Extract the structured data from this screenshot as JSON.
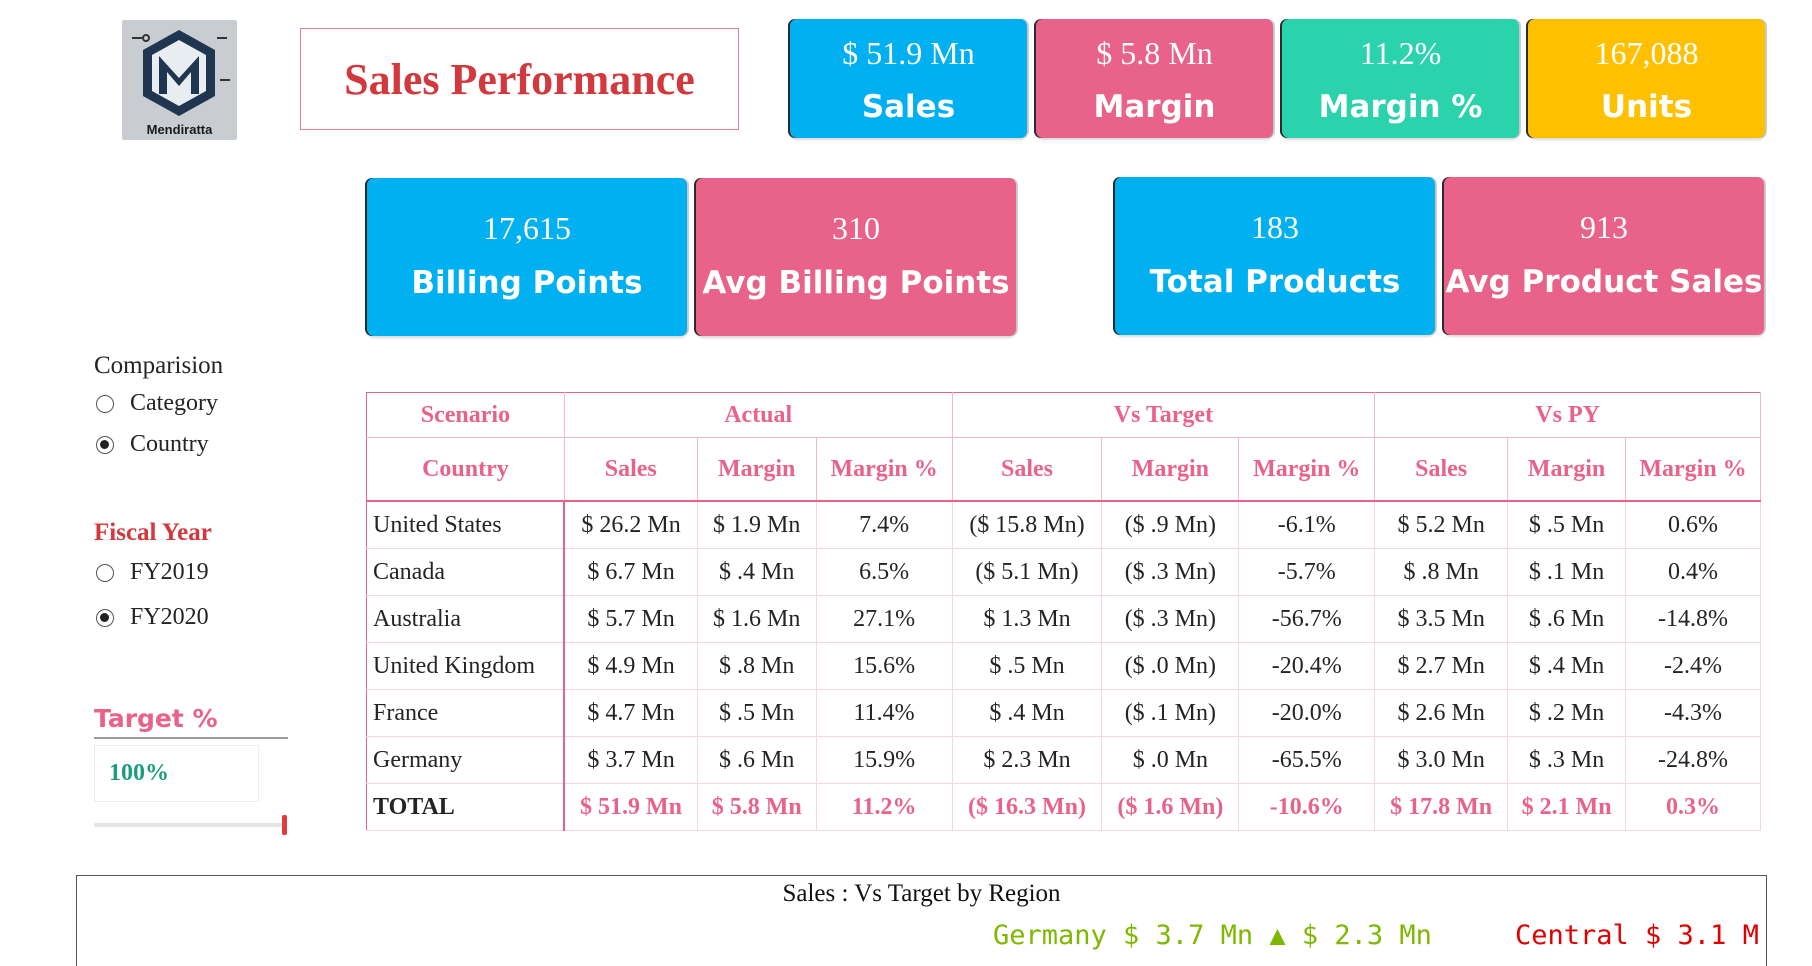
{
  "logo": {
    "text": "Mendiratta"
  },
  "title": "Sales Performance",
  "kpis_top": [
    {
      "value": "$ 51.9 Mn",
      "label": "Sales",
      "color": "#00b0f0"
    },
    {
      "value": "$ 5.8 Mn",
      "label": "Margin",
      "color": "#e9628a"
    },
    {
      "value": "11.2%",
      "label": "Margin %",
      "color": "#2ad3ac"
    },
    {
      "value": "167,088",
      "label": "Units",
      "color": "#ffc000"
    }
  ],
  "kpis_mid": [
    {
      "value": "17,615",
      "label": "Billing Points"
    },
    {
      "value": "310",
      "label": "Avg Billing Points"
    },
    {
      "value": "183",
      "label": "Total Products"
    },
    {
      "value": "913",
      "label": "Avg Product Sales"
    }
  ],
  "comparision": {
    "heading": "Comparision",
    "options": [
      {
        "label": "Category",
        "selected": false
      },
      {
        "label": "Country",
        "selected": true
      }
    ]
  },
  "fiscal_year": {
    "heading": "Fiscal Year",
    "options": [
      {
        "label": "FY2019",
        "selected": false
      },
      {
        "label": "FY2020",
        "selected": true
      }
    ]
  },
  "target": {
    "heading": "Target %",
    "value": "100%"
  },
  "table": {
    "group_headers": [
      "Scenario",
      "Actual",
      "Vs Target",
      "Vs PY"
    ],
    "col_headers": [
      "Country",
      "Sales",
      "Margin",
      "Margin %",
      "Sales",
      "Margin",
      "Margin %",
      "Sales",
      "Margin",
      "Margin %"
    ],
    "rows": [
      [
        "United States",
        "$ 26.2 Mn",
        "$ 1.9 Mn",
        "7.4%",
        "($ 15.8 Mn)",
        "($ .9 Mn)",
        "-6.1%",
        "$ 5.2 Mn",
        "$ .5 Mn",
        "0.6%"
      ],
      [
        "Canada",
        "$ 6.7 Mn",
        "$ .4 Mn",
        "6.5%",
        "($ 5.1 Mn)",
        "($ .3 Mn)",
        "-5.7%",
        "$ .8 Mn",
        "$ .1 Mn",
        "0.4%"
      ],
      [
        "Australia",
        "$ 5.7 Mn",
        "$ 1.6 Mn",
        "27.1%",
        "$ 1.3 Mn",
        "($ .3 Mn)",
        "-56.7%",
        "$ 3.5 Mn",
        "$ .6 Mn",
        "-14.8%"
      ],
      [
        "United Kingdom",
        "$ 4.9 Mn",
        "$ .8 Mn",
        "15.6%",
        "$ .5 Mn",
        "($ .0 Mn)",
        "-20.4%",
        "$ 2.7 Mn",
        "$ .4 Mn",
        "-2.4%"
      ],
      [
        "France",
        "$ 4.7 Mn",
        "$ .5 Mn",
        "11.4%",
        "$ .4 Mn",
        "($ .1 Mn)",
        "-20.0%",
        "$ 2.6 Mn",
        "$ .2 Mn",
        "-4.3%"
      ],
      [
        "Germany",
        "$ 3.7 Mn",
        "$ .6 Mn",
        "15.9%",
        "$ 2.3 Mn",
        "$ .0 Mn",
        "-65.5%",
        "$ 3.0 Mn",
        "$ .3 Mn",
        "-24.8%"
      ]
    ],
    "total": [
      "TOTAL",
      "$ 51.9 Mn",
      "$ 5.8 Mn",
      "11.2%",
      "($ 16.3 Mn)",
      "($ 1.6 Mn)",
      "-10.6%",
      "$ 17.8 Mn",
      "$ 2.1 Mn",
      "0.3%"
    ]
  },
  "ticker": {
    "title": "Sales : Vs Target by Region",
    "item1": "Germany $ 3.7 Mn ▲ $ 2.3 Mn",
    "item1_color": "#7fb800",
    "item2": "Central $ 3.1 M",
    "item2_color": "#e00000"
  }
}
